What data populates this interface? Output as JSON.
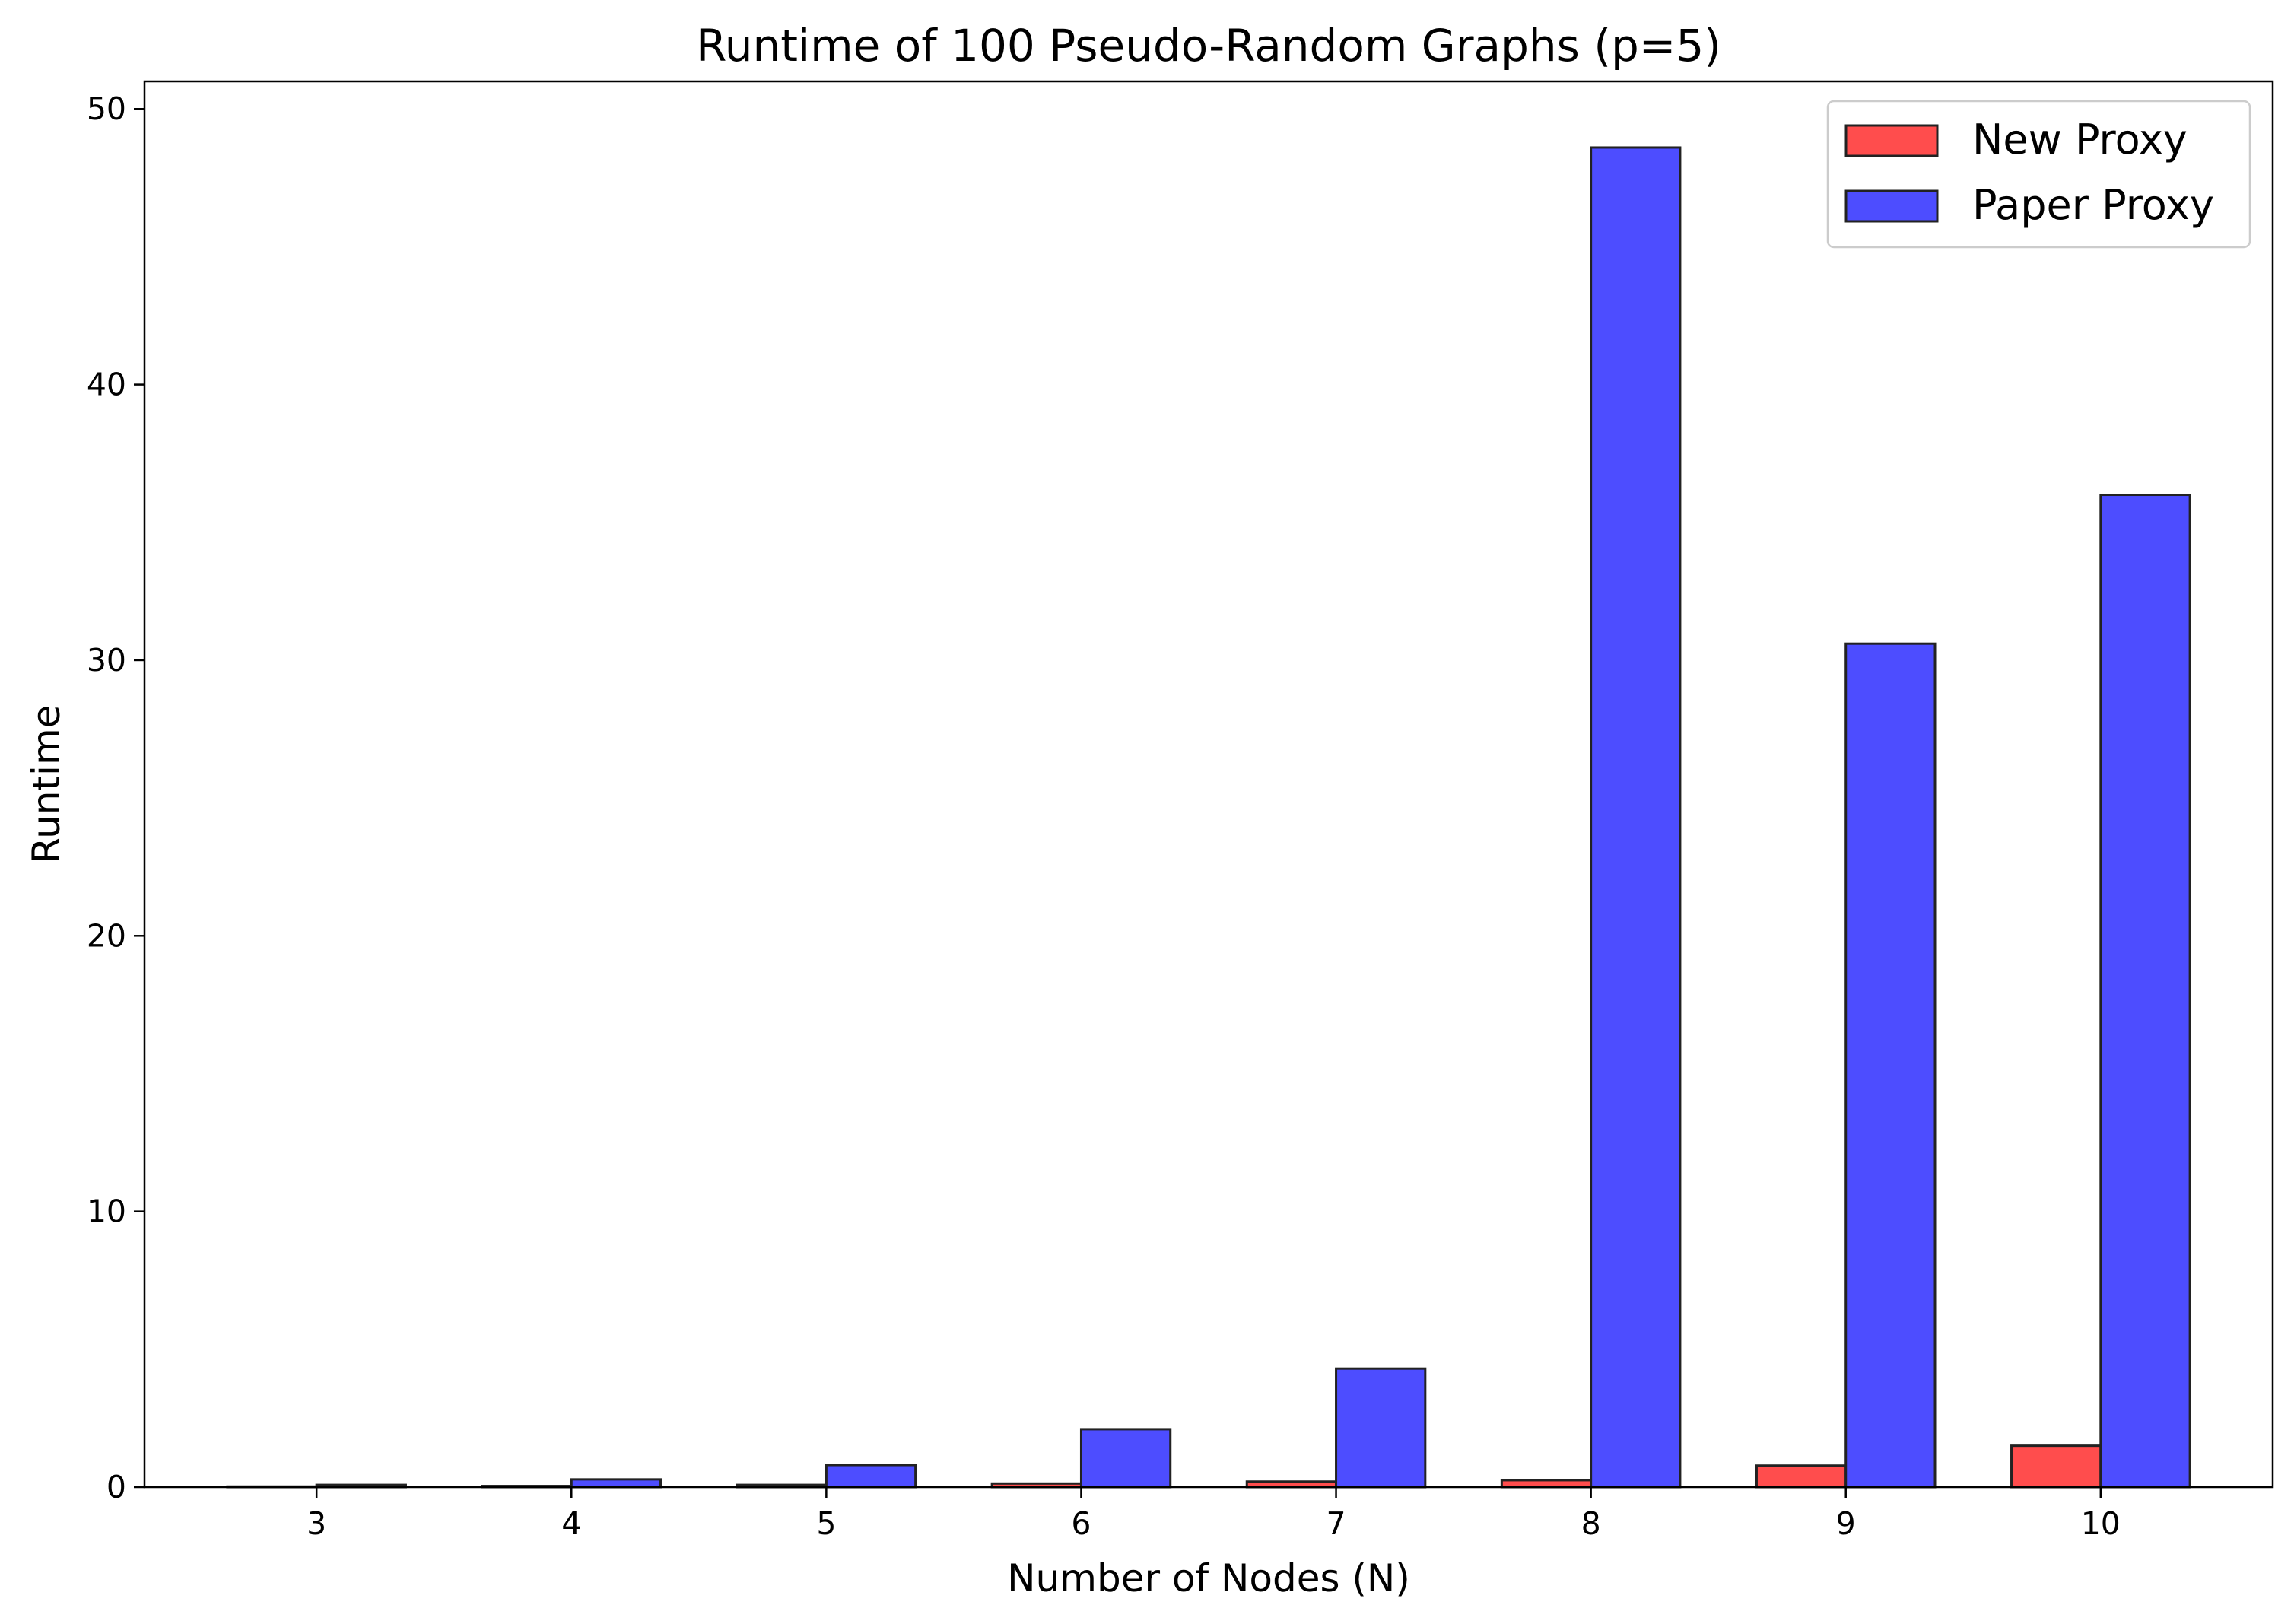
{
  "chart_data": {
    "type": "bar",
    "title": "Runtime of 100 Pseudo-Random Graphs (p=5)",
    "xlabel": "Number of Nodes (N)",
    "ylabel": "Runtime",
    "categories": [
      "3",
      "4",
      "5",
      "6",
      "7",
      "8",
      "9",
      "10"
    ],
    "series": [
      {
        "name": "New Proxy",
        "color": "#ff4d4d",
        "values": [
          0.02,
          0.04,
          0.08,
          0.13,
          0.2,
          0.25,
          0.78,
          1.5
        ]
      },
      {
        "name": "Paper Proxy",
        "color": "#4d4dff",
        "values": [
          0.08,
          0.28,
          0.8,
          2.1,
          4.3,
          48.6,
          30.6,
          36.0
        ]
      }
    ],
    "ylim": [
      0,
      51
    ],
    "yticks": [
      0,
      10,
      20,
      30,
      40,
      50
    ],
    "legend_position": "top-right",
    "grid": false,
    "edge_color": "#222222"
  }
}
